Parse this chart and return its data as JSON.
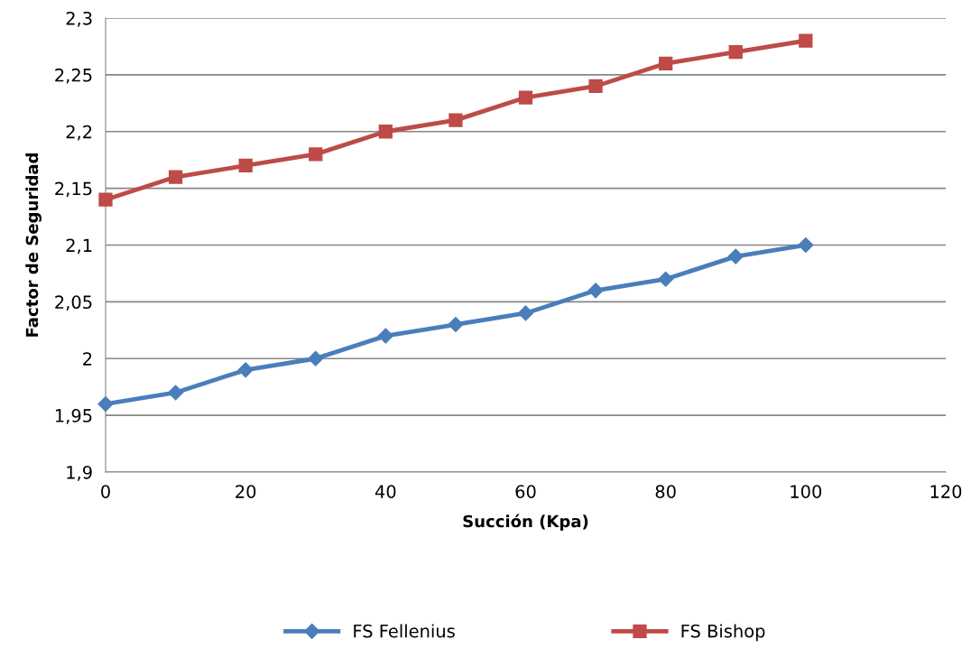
{
  "chart_data": {
    "type": "line",
    "xlabel": "Succión (Kpa)",
    "ylabel": "Factor de Seguridad",
    "x": [
      0,
      10,
      20,
      30,
      40,
      50,
      60,
      70,
      80,
      90,
      100
    ],
    "series": [
      {
        "name": "FS Fellenius",
        "color": "#4a7ebb",
        "marker": "diamond",
        "values": [
          1.96,
          1.97,
          1.99,
          2.0,
          2.02,
          2.03,
          2.04,
          2.06,
          2.07,
          2.09,
          2.1
        ]
      },
      {
        "name": "FS Bishop",
        "color": "#be4b48",
        "marker": "square",
        "values": [
          2.14,
          2.16,
          2.17,
          2.18,
          2.2,
          2.21,
          2.23,
          2.24,
          2.26,
          2.27,
          2.28
        ]
      }
    ],
    "xlim": [
      0,
      120
    ],
    "xticks": [
      0,
      20,
      40,
      60,
      80,
      100,
      120
    ],
    "ylim": [
      1.9,
      2.3
    ],
    "yticks": [
      {
        "value": 1.9,
        "label": "1,9"
      },
      {
        "value": 1.95,
        "label": "1,95"
      },
      {
        "value": 2,
        "label": "2"
      },
      {
        "value": 2.05,
        "label": "2,05"
      },
      {
        "value": 2.1,
        "label": "2,1"
      },
      {
        "value": 2.15,
        "label": "2,15"
      },
      {
        "value": 2.2,
        "label": "2,2"
      },
      {
        "value": 2.25,
        "label": "2,25"
      },
      {
        "value": 2.3,
        "label": "2,3"
      }
    ],
    "grid": "y",
    "legend": "bottom",
    "line_style": "solid"
  }
}
